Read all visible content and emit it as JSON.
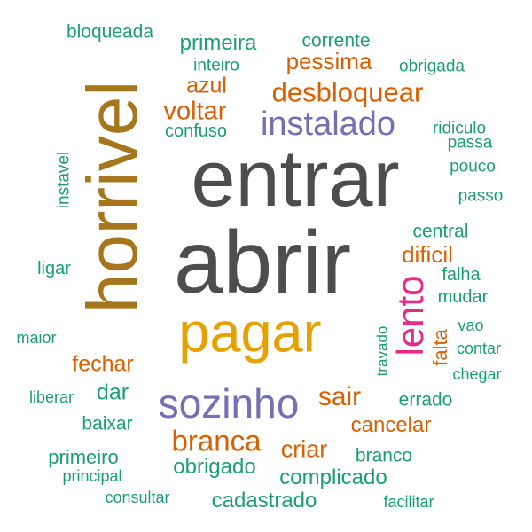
{
  "colors": {
    "green": "#1b9e77",
    "orange": "#d95f02",
    "purple": "#7570b3",
    "magenta": "#e7298a",
    "lime": "#66a61e",
    "gold": "#e6ab02",
    "brown": "#a6761d",
    "gray": "#666666"
  },
  "words": [
    {
      "text": "bloqueada",
      "color": "#1b9e77"
    },
    {
      "text": "primeira",
      "color": "#1b9e77"
    },
    {
      "text": "corrente",
      "color": "#1b9e77"
    },
    {
      "text": "inteiro",
      "color": "#1b9e77"
    },
    {
      "text": "pessima",
      "color": "#d95f02"
    },
    {
      "text": "obrigada",
      "color": "#1b9e77"
    },
    {
      "text": "horrivel",
      "color": "#a6761d"
    },
    {
      "text": "azul",
      "color": "#d95f02"
    },
    {
      "text": "desbloquear",
      "color": "#d95f02"
    },
    {
      "text": "voltar",
      "color": "#d95f02"
    },
    {
      "text": "instalado",
      "color": "#7570b3"
    },
    {
      "text": "confuso",
      "color": "#1b9e77"
    },
    {
      "text": "ridiculo",
      "color": "#1b9e77"
    },
    {
      "text": "passa",
      "color": "#1b9e77"
    },
    {
      "text": "entrar",
      "color": "#4d4d4d"
    },
    {
      "text": "instavel",
      "color": "#1b9e77"
    },
    {
      "text": "pouco",
      "color": "#1b9e77"
    },
    {
      "text": "passo",
      "color": "#1b9e77"
    },
    {
      "text": "central",
      "color": "#1b9e77"
    },
    {
      "text": "abrir",
      "color": "#4d4d4d"
    },
    {
      "text": "dificil",
      "color": "#d95f02"
    },
    {
      "text": "ligar",
      "color": "#1b9e77"
    },
    {
      "text": "falha",
      "color": "#1b9e77"
    },
    {
      "text": "mudar",
      "color": "#1b9e77"
    },
    {
      "text": "lento",
      "color": "#e7298a"
    },
    {
      "text": "pagar",
      "color": "#e6a000"
    },
    {
      "text": "vao",
      "color": "#1b9e77"
    },
    {
      "text": "maior",
      "color": "#1b9e77"
    },
    {
      "text": "travado",
      "color": "#1b9e77"
    },
    {
      "text": "falta",
      "color": "#d95f02"
    },
    {
      "text": "contar",
      "color": "#1b9e77"
    },
    {
      "text": "fechar",
      "color": "#d95f02"
    },
    {
      "text": "chegar",
      "color": "#1b9e77"
    },
    {
      "text": "liberar",
      "color": "#1b9e77"
    },
    {
      "text": "dar",
      "color": "#1b9e77"
    },
    {
      "text": "sozinho",
      "color": "#7570b3"
    },
    {
      "text": "sair",
      "color": "#d95f02"
    },
    {
      "text": "errado",
      "color": "#1b9e77"
    },
    {
      "text": "baixar",
      "color": "#1b9e77"
    },
    {
      "text": "cancelar",
      "color": "#d95f02"
    },
    {
      "text": "branca",
      "color": "#d95f02"
    },
    {
      "text": "primeiro",
      "color": "#1b9e77"
    },
    {
      "text": "criar",
      "color": "#d95f02"
    },
    {
      "text": "branco",
      "color": "#1b9e77"
    },
    {
      "text": "obrigado",
      "color": "#1b9e77"
    },
    {
      "text": "principal",
      "color": "#1b9e77"
    },
    {
      "text": "complicado",
      "color": "#1b9e77"
    },
    {
      "text": "consultar",
      "color": "#1b9e77"
    },
    {
      "text": "cadastrado",
      "color": "#1b9e77"
    },
    {
      "text": "facilitar",
      "color": "#1b9e77"
    }
  ]
}
